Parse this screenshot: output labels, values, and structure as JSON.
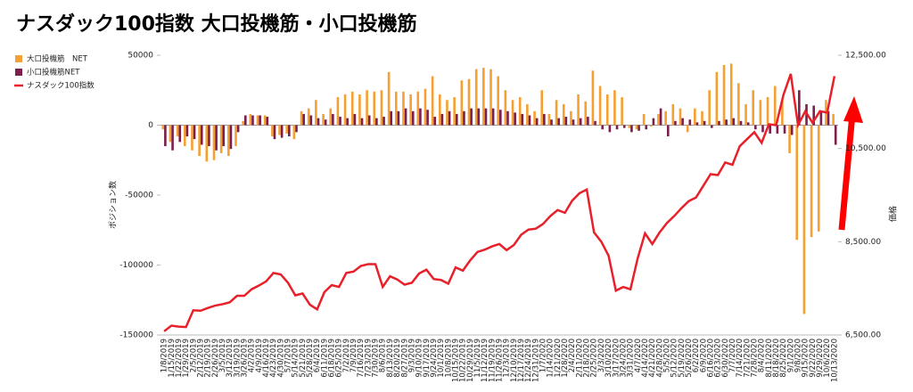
{
  "chart_data": {
    "type": "bar",
    "title": "ナスダック100指数 大口投機筋・小口投機筋",
    "y_label": "ポジション数",
    "y2_label": "価格",
    "categories": [
      "1/8/2019",
      "1/15/2019",
      "1/22/2019",
      "1/29/2019",
      "2/5/2019",
      "2/12/2019",
      "2/19/2019",
      "2/26/2019",
      "3/5/2019",
      "3/12/2019",
      "3/19/2019",
      "3/26/2019",
      "4/2/2019",
      "4/9/2019",
      "4/16/2019",
      "4/23/2019",
      "4/30/2019",
      "5/7/2019",
      "5/14/2019",
      "5/21/2019",
      "5/28/2019",
      "6/4/2019",
      "6/11/2019",
      "6/18/2019",
      "6/25/2019",
      "7/2/2019",
      "7/9/2019",
      "7/16/2019",
      "7/23/2019",
      "7/30/2019",
      "8/6/2019",
      "8/13/2019",
      "8/20/2019",
      "8/27/2019",
      "9/3/2019",
      "9/10/2019",
      "9/17/2019",
      "9/24/2019",
      "10/1/2019",
      "10/8/2019",
      "10/15/2019",
      "10/22/2019",
      "10/29/2019",
      "11/5/2019",
      "11/12/2019",
      "11/19/2019",
      "11/26/2019",
      "12/3/2019",
      "12/10/2019",
      "12/17/2019",
      "12/24/2019",
      "12/31/2019",
      "1/7/2020",
      "1/14/2020",
      "1/21/2020",
      "1/28/2020",
      "2/4/2020",
      "2/11/2020",
      "2/18/2020",
      "2/25/2020",
      "3/3/2020",
      "3/10/2020",
      "3/17/2020",
      "3/24/2020",
      "3/31/2020",
      "4/7/2020",
      "4/14/2020",
      "4/21/2020",
      "4/28/2020",
      "5/5/2020",
      "5/12/2020",
      "5/19/2020",
      "5/26/2020",
      "6/2/2020",
      "6/9/2020",
      "6/16/2020",
      "6/23/2020",
      "6/30/2020",
      "7/7/2020",
      "7/14/2020",
      "7/21/2020",
      "7/28/2020",
      "8/4/2020",
      "8/11/2020",
      "8/18/2020",
      "8/25/2020",
      "9/1/2020",
      "9/8/2020",
      "9/15/2020",
      "9/22/2020",
      "9/29/2020",
      "10/6/2020",
      "10/13/2020"
    ],
    "series": [
      {
        "name": "大口投機筋　NET",
        "color": "#f5a033",
        "values": [
          -3000,
          -12000,
          -8000,
          -15000,
          -18000,
          -22000,
          -26000,
          -25000,
          -20000,
          -22000,
          -15000,
          3000,
          8000,
          7000,
          7000,
          -8000,
          -7000,
          -6000,
          -10000,
          10000,
          12000,
          18000,
          8000,
          12000,
          20000,
          22000,
          24000,
          22000,
          25000,
          24000,
          25000,
          38000,
          24000,
          24000,
          22000,
          24000,
          26000,
          35000,
          22000,
          18000,
          20000,
          32000,
          33000,
          40000,
          41000,
          40000,
          35000,
          25000,
          18000,
          20000,
          15000,
          10000,
          25000,
          8000,
          18000,
          15000,
          10000,
          22000,
          17000,
          39000,
          28000,
          22000,
          25000,
          20000,
          -2000,
          -3000,
          8000,
          -1000,
          8000,
          10000,
          15000,
          12000,
          -5000,
          12000,
          10000,
          25000,
          38000,
          43000,
          44000,
          30000,
          15000,
          25000,
          18000,
          20000,
          28000,
          18000,
          -20000,
          -82000,
          -135000,
          -80000,
          -76000,
          18000,
          8000
        ]
      },
      {
        "name": "小口投機筋NET",
        "color": "#7b1f4e",
        "values": [
          -15000,
          -18000,
          -12000,
          -8000,
          -10000,
          -14000,
          -15000,
          -18000,
          -15000,
          -17000,
          -5000,
          7000,
          7000,
          7000,
          6000,
          -10000,
          -9000,
          -8000,
          -5000,
          8000,
          7000,
          5000,
          4000,
          8000,
          6000,
          5000,
          8000,
          5000,
          7000,
          5000,
          6000,
          10000,
          10000,
          12000,
          10000,
          12000,
          11000,
          6000,
          8000,
          10000,
          8000,
          10000,
          12000,
          12000,
          12000,
          12000,
          11000,
          10000,
          9000,
          8000,
          7000,
          5000,
          8000,
          4000,
          5000,
          6000,
          4000,
          5000,
          6000,
          3000,
          -3000,
          -5000,
          -3000,
          -2000,
          -5000,
          -4000,
          -3000,
          5000,
          12000,
          -8000,
          3000,
          5000,
          4000,
          2000,
          3000,
          -2000,
          3000,
          4000,
          5000,
          3000,
          2000,
          -3000,
          -5000,
          -6000,
          -6000,
          -6000,
          -7000,
          25000,
          15000,
          14000,
          10000,
          10000,
          -14000
        ]
      },
      {
        "name": "ナスダック100指数",
        "color": "#e8202a",
        "type": "line",
        "axis": "y2",
        "values": [
          6580,
          6700,
          6680,
          6670,
          7030,
          7020,
          7080,
          7130,
          7160,
          7200,
          7340,
          7340,
          7480,
          7560,
          7650,
          7830,
          7800,
          7620,
          7350,
          7390,
          7150,
          7050,
          7420,
          7570,
          7530,
          7830,
          7860,
          7980,
          8020,
          8020,
          7530,
          7760,
          7690,
          7580,
          7620,
          7820,
          7900,
          7700,
          7680,
          7600,
          7950,
          7880,
          8100,
          8280,
          8330,
          8400,
          8450,
          8320,
          8430,
          8650,
          8760,
          8780,
          8880,
          9050,
          9180,
          9120,
          9380,
          9540,
          9620,
          8700,
          8500,
          8200,
          7450,
          7530,
          7480,
          8150,
          8680,
          8450,
          8700,
          8900,
          9050,
          9220,
          9370,
          9450,
          9700,
          9950,
          9930,
          10200,
          10150,
          10550,
          10700,
          10850,
          10620,
          11020,
          11000,
          11650,
          12100,
          11000,
          11300,
          11050,
          11300,
          11270,
          12050
        ]
      }
    ],
    "ylim": [
      -150000,
      50000
    ],
    "yticks": [
      50000,
      0,
      -50000,
      -100000,
      -150000
    ],
    "y2lim": [
      6500,
      12500
    ],
    "y2ticks": [
      {
        "value": 12500,
        "label": "12,500.00"
      },
      {
        "value": 10500,
        "label": "10,500.00"
      },
      {
        "value": 8500,
        "label": "8,500.00"
      },
      {
        "value": 6500,
        "label": "6,500.00"
      }
    ],
    "grid": false,
    "legend": "top-left"
  }
}
